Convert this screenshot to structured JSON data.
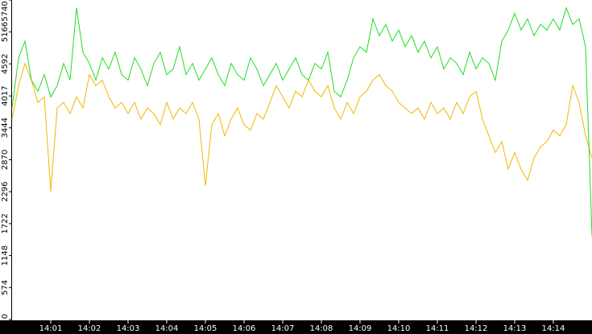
{
  "chart_data": {
    "type": "line",
    "categories": [
      null,
      null,
      null,
      null,
      null,
      null,
      "14:01",
      null,
      null,
      null,
      null,
      null,
      "14:02",
      null,
      null,
      null,
      null,
      null,
      "14:03",
      null,
      null,
      null,
      null,
      null,
      "14:04",
      null,
      null,
      null,
      null,
      null,
      "14:05",
      null,
      null,
      null,
      null,
      null,
      "14:06",
      null,
      null,
      null,
      null,
      null,
      "14:07",
      null,
      null,
      null,
      null,
      null,
      "14:08",
      null,
      null,
      null,
      null,
      null,
      "14:09",
      null,
      null,
      null,
      null,
      null,
      "14:10",
      null,
      null,
      null,
      null,
      null,
      "14:11",
      null,
      null,
      null,
      null,
      null,
      "14:12",
      null,
      null,
      null,
      null,
      null,
      "14:13",
      null,
      null,
      null,
      null,
      null,
      "14:14",
      null,
      null,
      null,
      null,
      null,
      null
    ],
    "series": [
      {
        "color": "#22dd22",
        "values": [
          3800,
          4700,
          5000,
          4300,
          4100,
          4400,
          4000,
          4200,
          4600,
          4300,
          5600,
          4800,
          4600,
          4300,
          4700,
          4500,
          4800,
          4400,
          4300,
          4700,
          4500,
          4200,
          4600,
          4800,
          4400,
          4500,
          4900,
          4400,
          4600,
          4300,
          4500,
          4700,
          4400,
          4200,
          4600,
          4400,
          4300,
          4700,
          4500,
          4200,
          4400,
          4600,
          4300,
          4500,
          4700,
          4400,
          4300,
          4600,
          4500,
          4800,
          4100,
          4000,
          4300,
          4700,
          4900,
          4800,
          5400,
          5100,
          5300,
          5000,
          5200,
          4900,
          5100,
          4800,
          5000,
          4700,
          4900,
          4500,
          4700,
          4600,
          4400,
          4800,
          4500,
          4700,
          4600,
          4300,
          5000,
          5200,
          5500,
          5200,
          5400,
          5100,
          5300,
          5200,
          5400,
          5200,
          5600,
          5300,
          5400,
          4900,
          1500
        ]
      },
      {
        "color": "#f0b800",
        "values": [
          3600,
          4200,
          4600,
          4300,
          3900,
          4000,
          2300,
          3800,
          3900,
          3700,
          4000,
          3800,
          4400,
          4200,
          4300,
          4000,
          3800,
          3900,
          3700,
          3900,
          3600,
          3800,
          3700,
          3500,
          3900,
          3600,
          3800,
          3700,
          3900,
          3600,
          2400,
          3500,
          3700,
          3300,
          3600,
          3800,
          3500,
          3400,
          3700,
          3600,
          3900,
          4200,
          4000,
          3800,
          4100,
          4000,
          4300,
          4100,
          4000,
          4200,
          3800,
          3600,
          3900,
          3700,
          4000,
          4100,
          4300,
          4400,
          4200,
          4100,
          3900,
          3800,
          3700,
          3800,
          3600,
          3900,
          3700,
          3800,
          3600,
          3900,
          3700,
          4000,
          4100,
          3600,
          3300,
          3000,
          3200,
          2700,
          3000,
          2700,
          2500,
          2900,
          3100,
          3200,
          3400,
          3300,
          3500,
          4200,
          3900,
          3300,
          2900
        ]
      }
    ],
    "ylim": [
      0,
      5740
    ],
    "yticks": [
      0,
      574,
      1148,
      1722,
      2296,
      2870,
      3444,
      4017,
      4592,
      5166,
      5740
    ]
  }
}
